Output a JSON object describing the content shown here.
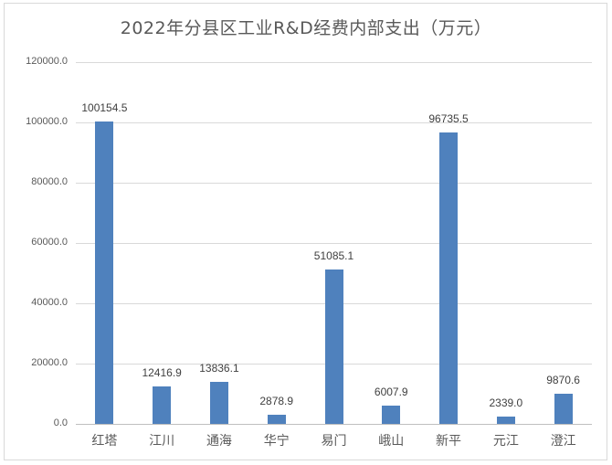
{
  "chart_data": {
    "type": "bar",
    "title": "2022年分县区工业R&D经费内部支出（万元）",
    "xlabel": "",
    "ylabel": "",
    "ylim": [
      0,
      120000
    ],
    "yticks": [
      "0.0",
      "20000.0",
      "40000.0",
      "60000.0",
      "80000.0",
      "100000.0",
      "120000.0"
    ],
    "grid": true,
    "legend": null,
    "bar_color": "#4f81bd",
    "categories": [
      "红塔",
      "江川",
      "通海",
      "华宁",
      "易门",
      "峨山",
      "新平",
      "元江",
      "澄江"
    ],
    "values": [
      100154.5,
      12416.9,
      13836.1,
      2878.9,
      51085.1,
      6007.9,
      96735.5,
      2339.0,
      9870.6
    ],
    "labels": [
      "100154.5",
      "12416.9",
      "13836.1",
      "2878.9",
      "51085.1",
      "6007.9",
      "96735.5",
      "2339.0",
      "9870.6"
    ]
  }
}
